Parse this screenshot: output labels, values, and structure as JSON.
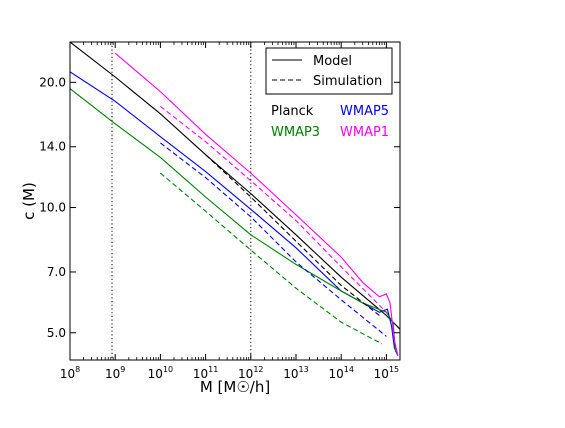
{
  "chart_data": {
    "type": "line",
    "xlabel": "M  [M☉/h]",
    "ylabel": "c (M)",
    "xscale": "log",
    "yscale": "log",
    "xlim": [
      100000000.0,
      2000000000000000.0
    ],
    "ylim": [
      4.3,
      25
    ],
    "xticks": [
      {
        "value": 100000000.0,
        "base": "10",
        "exp": "8"
      },
      {
        "value": 1000000000.0,
        "base": "10",
        "exp": "9"
      },
      {
        "value": 10000000000.0,
        "base": "10",
        "exp": "10"
      },
      {
        "value": 100000000000.0,
        "base": "10",
        "exp": "11"
      },
      {
        "value": 1000000000000.0,
        "base": "10",
        "exp": "12"
      },
      {
        "value": 10000000000000.0,
        "base": "10",
        "exp": "13"
      },
      {
        "value": 100000000000000.0,
        "base": "10",
        "exp": "14"
      },
      {
        "value": 1000000000000000.0,
        "base": "10",
        "exp": "15"
      }
    ],
    "yticks": [
      {
        "value": 5.0,
        "label": "5.0"
      },
      {
        "value": 7.0,
        "label": "7.0"
      },
      {
        "value": 10.0,
        "label": "10.0"
      },
      {
        "value": 14.0,
        "label": "14.0"
      },
      {
        "value": 20.0,
        "label": "20.0"
      }
    ],
    "vlines": [
      850000000.0,
      1000000000000.0
    ],
    "legend": {
      "placement": "top-right",
      "entries": [
        {
          "label": "Model",
          "style": "solid"
        },
        {
          "label": "Simulation",
          "style": "dashed"
        }
      ]
    },
    "cosmology_labels": [
      {
        "label": "Planck",
        "color": "#000000"
      },
      {
        "label": "WMAP5",
        "color": "#0000ff"
      },
      {
        "label": "WMAP3",
        "color": "#008000"
      },
      {
        "label": "WMAP1",
        "color": "#ff00ff"
      }
    ],
    "series": [
      {
        "name": "Planck",
        "style": "solid",
        "color": "#000000",
        "x": [
          100000000.0,
          1000000000.0,
          10000000000.0,
          100000000000.0,
          1000000000000.0,
          10000000000000.0,
          100000000000000.0,
          1000000000000000.0,
          2000000000000000.0
        ],
        "y": [
          25,
          20.6,
          16.8,
          13.4,
          10.8,
          8.6,
          6.8,
          5.5,
          5.1
        ]
      },
      {
        "name": "WMAP5",
        "style": "solid",
        "color": "#0000ff",
        "x": [
          100000000.0,
          1000000000.0,
          10000000000.0,
          100000000000.0,
          1000000000000.0,
          10000000000000.0,
          100000000000000.0,
          700000000000000.0,
          1050000000000000.0,
          1300000000000000.0,
          1500000000000000.0,
          1800000000000000.0
        ],
        "y": [
          21.2,
          18.0,
          14.8,
          12.2,
          9.9,
          8.0,
          6.3,
          5.6,
          5.7,
          5.2,
          4.6,
          4.4
        ]
      },
      {
        "name": "WMAP3",
        "style": "solid",
        "color": "#008000",
        "x": [
          100000000.0,
          1000000000.0,
          10000000000.0,
          100000000000.0,
          1000000000000.0,
          10000000000000.0,
          100000000000000.0,
          300000000000000.0,
          1000000000000000.0,
          1400000000000000.0,
          1600000000000000.0
        ],
        "y": [
          19.3,
          15.9,
          13.2,
          10.6,
          8.6,
          7.3,
          6.3,
          5.9,
          5.6,
          5.3,
          4.5
        ]
      },
      {
        "name": "WMAP1",
        "style": "solid",
        "color": "#ff00ff",
        "x": [
          1000000000.0,
          10000000000.0,
          100000000000.0,
          1000000000000.0,
          10000000000000.0,
          100000000000000.0,
          300000000000000.0,
          700000000000000.0,
          1000000000000000.0,
          1200000000000000.0,
          1500000000000000.0,
          1800000000000000.0
        ],
        "y": [
          23.5,
          19.0,
          15.0,
          12.1,
          9.6,
          7.6,
          6.6,
          6.1,
          6.2,
          5.9,
          4.8,
          4.4
        ]
      },
      {
        "name": "Planck",
        "style": "dashed",
        "color": "#000000",
        "x": [
          100000000000.0,
          1000000000000.0,
          10000000000000.0,
          100000000000000.0,
          700000000000000.0
        ],
        "y": [
          13.4,
          10.6,
          8.3,
          6.5,
          5.5
        ]
      },
      {
        "name": "WMAP5",
        "style": "dashed",
        "color": "#0000ff",
        "x": [
          10000000000.0,
          100000000000.0,
          1000000000000.0,
          10000000000000.0,
          100000000000000.0,
          1000000000000000.0
        ],
        "y": [
          14.3,
          11.8,
          9.5,
          7.4,
          6.0,
          4.9
        ]
      },
      {
        "name": "WMAP3",
        "style": "dashed",
        "color": "#008000",
        "x": [
          10000000000.0,
          100000000000.0,
          1000000000000.0,
          10000000000000.0,
          100000000000000.0,
          800000000000000.0
        ],
        "y": [
          12.1,
          9.8,
          7.9,
          6.4,
          5.3,
          4.7
        ]
      },
      {
        "name": "WMAP1",
        "style": "dashed",
        "color": "#ff00ff",
        "x": [
          10000000000.0,
          100000000000.0,
          1000000000000.0,
          10000000000000.0,
          100000000000000.0,
          1000000000000000.0
        ],
        "y": [
          17.5,
          14.4,
          11.6,
          9.3,
          7.2,
          5.6
        ]
      }
    ]
  }
}
